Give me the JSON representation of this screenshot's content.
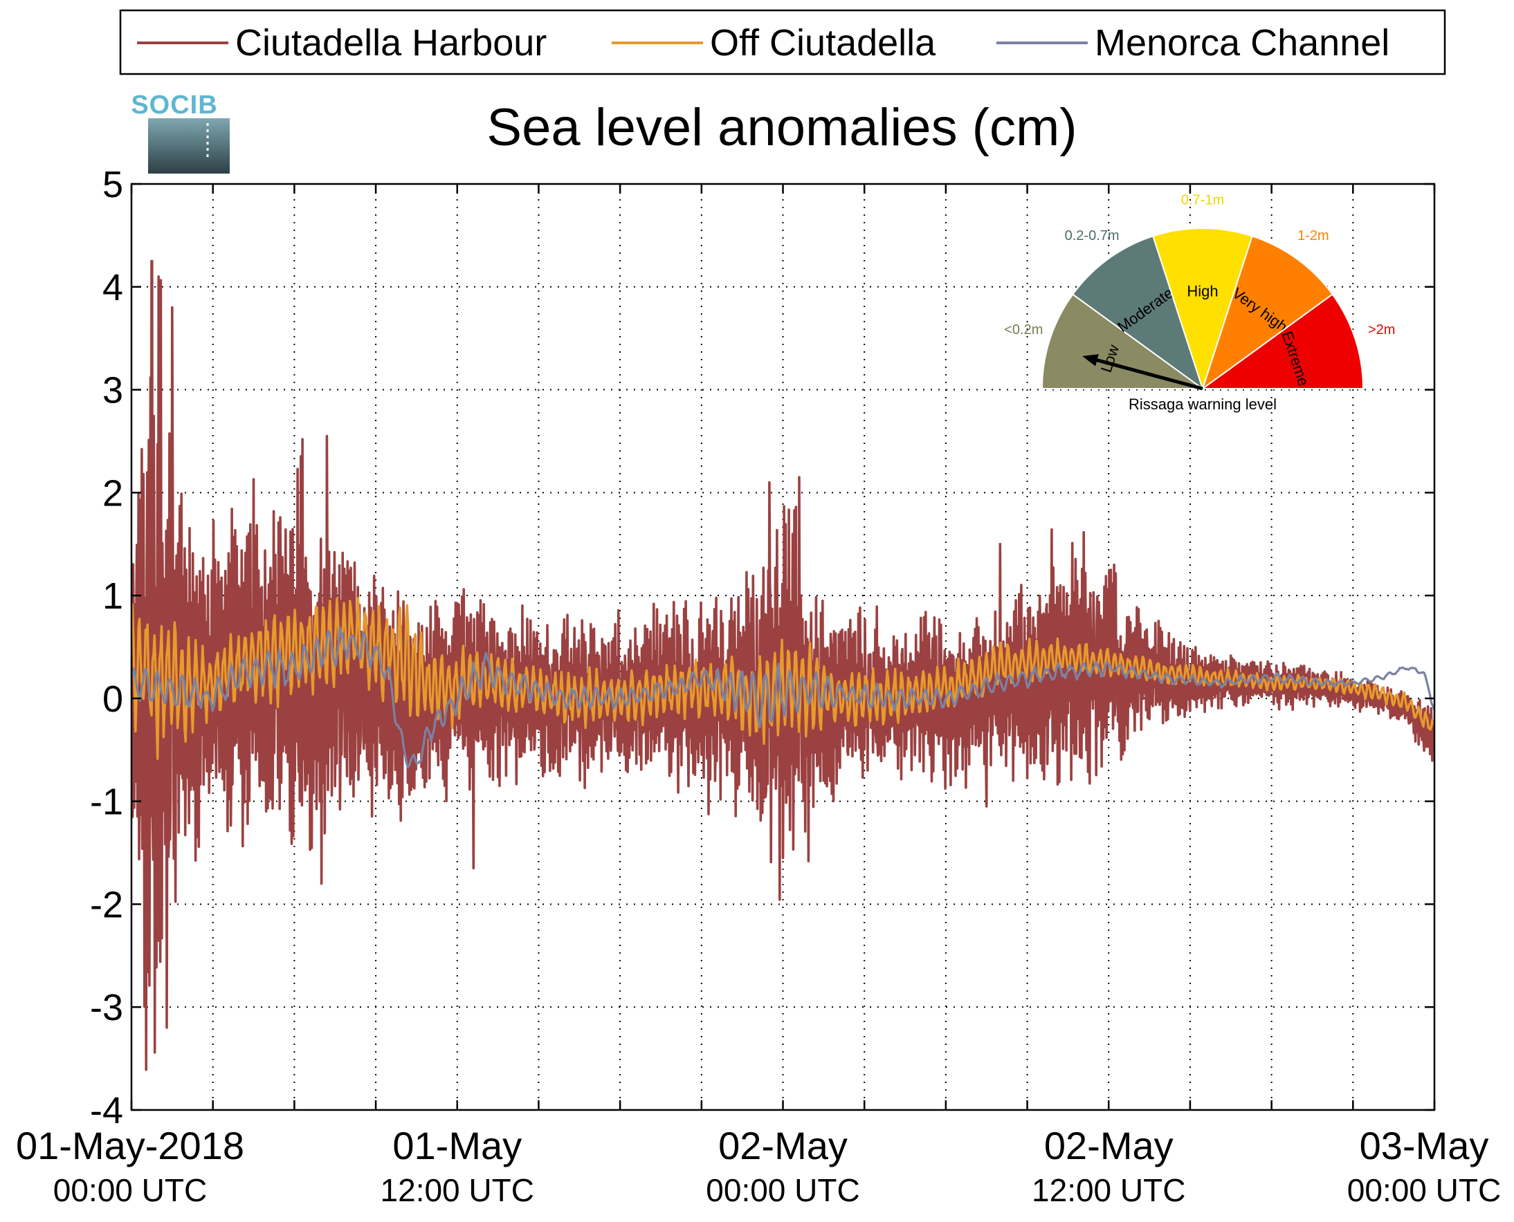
{
  "chart_data": {
    "type": "line",
    "title": "Sea level anomalies (cm)",
    "xlabel": "",
    "ylabel": "",
    "x_range": [
      "01-May-2018 00:00 UTC",
      "03-May-2018 00:00 UTC"
    ],
    "ylim": [
      -4,
      5
    ],
    "yticks": [
      -4,
      -3,
      -2,
      -1,
      0,
      1,
      2,
      3,
      4,
      5
    ],
    "x_tick_labels": [
      {
        "t": 0,
        "line1": "01-May-2018",
        "line2": "00:00 UTC"
      },
      {
        "t": 12,
        "line1": "01-May",
        "line2": "12:00 UTC"
      },
      {
        "t": 24,
        "line1": "02-May",
        "line2": "00:00 UTC"
      },
      {
        "t": 36,
        "line1": "02-May",
        "line2": "12:00 UTC"
      },
      {
        "t": 48,
        "line1": "03-May",
        "line2": "00:00 UTC"
      }
    ],
    "x_minor_ticks_hours": [
      3,
      6,
      9,
      15,
      18,
      21,
      27,
      30,
      33,
      39,
      42,
      45
    ],
    "grid": true,
    "legend_position": "top",
    "series": [
      {
        "name": "Ciutadella Harbour",
        "color": "#9b4141",
        "x_hours": [
          0,
          0.5,
          1,
          1.5,
          2,
          2.5,
          3,
          4,
          5,
          6,
          7,
          8,
          9,
          10,
          11,
          12,
          13,
          14,
          15,
          16,
          18,
          20,
          22,
          23,
          24,
          25,
          26,
          27,
          28,
          30,
          32,
          34,
          35,
          36,
          37,
          38,
          39,
          40,
          42,
          44,
          46,
          47,
          48
        ],
        "envelope": [
          1.5,
          4.2,
          4.0,
          3.0,
          2.0,
          1.6,
          1.6,
          1.7,
          1.8,
          2.2,
          1.7,
          1.5,
          1.3,
          1.1,
          1.0,
          1.1,
          1.0,
          0.9,
          0.8,
          0.9,
          0.8,
          0.9,
          1.1,
          1.6,
          2.1,
          1.6,
          1.0,
          0.9,
          0.8,
          0.9,
          0.8,
          1.4,
          1.3,
          1.0,
          0.8,
          0.6,
          0.4,
          0.3,
          0.25,
          0.2,
          0.15,
          0.2,
          0.3
        ],
        "mean": [
          0.1,
          0.2,
          0.0,
          0.0,
          0.0,
          0.1,
          0.1,
          0.2,
          0.3,
          0.4,
          0.3,
          0.1,
          0.1,
          0.0,
          0.0,
          0.1,
          0.1,
          0.0,
          0.0,
          0.0,
          0.0,
          0.0,
          0.0,
          0.0,
          0.0,
          0.0,
          0.0,
          0.0,
          0.0,
          0.0,
          0.1,
          0.3,
          0.35,
          0.3,
          0.25,
          0.2,
          0.15,
          0.15,
          0.15,
          0.1,
          0.0,
          -0.1,
          -0.4
        ],
        "extremes": [
          [
            0.75,
            4.25
          ],
          [
            1.0,
            4.1
          ],
          [
            1.3,
            -3.2
          ],
          [
            1.5,
            3.8
          ],
          [
            7.0,
            -1.8
          ],
          [
            7.2,
            2.55
          ],
          [
            12.6,
            -1.65
          ],
          [
            24.0,
            -1.55
          ],
          [
            23.5,
            2.1
          ],
          [
            24.6,
            2.15
          ],
          [
            32.0,
            1.5
          ],
          [
            31.5,
            -1.05
          ]
        ]
      },
      {
        "name": "Off Ciutadella",
        "color": "#e89a2c",
        "x_hours": [
          0,
          1,
          2,
          3,
          4,
          5,
          6,
          7,
          8,
          9,
          10,
          11,
          12,
          13,
          14,
          16,
          18,
          20,
          22,
          23,
          24,
          25,
          26,
          28,
          30,
          32,
          34,
          36,
          38,
          40,
          42,
          44,
          46,
          47,
          48
        ],
        "envelope": [
          0.7,
          0.8,
          0.6,
          0.4,
          0.4,
          0.5,
          0.5,
          0.5,
          0.5,
          0.5,
          0.6,
          0.4,
          0.4,
          0.3,
          0.3,
          0.3,
          0.3,
          0.3,
          0.35,
          0.5,
          0.5,
          0.45,
          0.3,
          0.3,
          0.25,
          0.3,
          0.2,
          0.15,
          0.12,
          0.1,
          0.08,
          0.08,
          0.1,
          0.1,
          0.1
        ],
        "mean": [
          0.3,
          0.2,
          0.1,
          0.2,
          0.3,
          0.4,
          0.5,
          0.5,
          0.6,
          0.5,
          0.4,
          0.1,
          0.1,
          0.2,
          0.1,
          0.0,
          0.0,
          0.1,
          0.1,
          0.0,
          0.1,
          0.1,
          0.0,
          0.0,
          0.1,
          0.3,
          0.4,
          0.35,
          0.25,
          0.2,
          0.15,
          0.15,
          0.05,
          -0.05,
          -0.3
        ]
      },
      {
        "name": "Menorca Channel",
        "color": "#7b82a3",
        "x_hours": [
          0,
          1,
          2,
          3,
          4,
          5,
          6,
          7,
          8,
          9,
          9.5,
          10,
          10.5,
          11,
          12,
          13,
          14,
          16,
          18,
          20,
          21,
          22,
          23,
          24,
          25,
          26,
          28,
          30,
          32,
          34,
          36,
          38,
          40,
          42,
          44,
          45,
          46,
          47,
          47.6,
          48
        ],
        "envelope": [
          0.25,
          0.2,
          0.2,
          0.15,
          0.2,
          0.2,
          0.2,
          0.2,
          0.2,
          0.2,
          0.15,
          0.15,
          0.1,
          0.15,
          0.15,
          0.2,
          0.15,
          0.12,
          0.12,
          0.1,
          0.12,
          0.2,
          0.3,
          0.3,
          0.25,
          0.15,
          0.12,
          0.1,
          0.1,
          0.1,
          0.08,
          0.06,
          0.05,
          0.05,
          0.04,
          0.03,
          0.03,
          0.03,
          0.03,
          0.05
        ],
        "mean": [
          0.15,
          0.1,
          0.05,
          0.0,
          0.25,
          0.3,
          0.3,
          0.45,
          0.55,
          0.45,
          0.2,
          -0.5,
          -0.65,
          -0.3,
          0.0,
          0.3,
          0.15,
          0.0,
          0.0,
          0.1,
          0.2,
          0.1,
          0.0,
          0.05,
          0.1,
          0.05,
          0.0,
          0.0,
          0.15,
          0.25,
          0.3,
          0.2,
          0.15,
          0.2,
          0.15,
          0.15,
          0.2,
          0.3,
          0.25,
          -0.1
        ]
      }
    ]
  },
  "legend": [
    {
      "label": "Ciutadella Harbour",
      "color": "#9b4141"
    },
    {
      "label": "Off Ciutadella",
      "color": "#e89a2c"
    },
    {
      "label": "Menorca Channel",
      "color": "#7b82a3"
    }
  ],
  "logo": {
    "text": "SOCIB"
  },
  "gauge": {
    "caption": "Rissaga warning level",
    "active_level": "Low",
    "segments": [
      {
        "level": "Low",
        "range": "<0.2m",
        "color": "#8a8a63",
        "range_color": "#7a7a52"
      },
      {
        "level": "Moderate",
        "range": "0.2-0.7m",
        "color": "#5c7a78",
        "range_color": "#4d6b69"
      },
      {
        "level": "High",
        "range": "0.7-1m",
        "color": "#ffe000",
        "range_color": "#f2d400"
      },
      {
        "level": "Very high",
        "range": "1-2m",
        "color": "#ff8000",
        "range_color": "#ff8000"
      },
      {
        "level": "Extreme",
        "range": ">2m",
        "color": "#ee0000",
        "range_color": "#ee0000"
      }
    ]
  }
}
